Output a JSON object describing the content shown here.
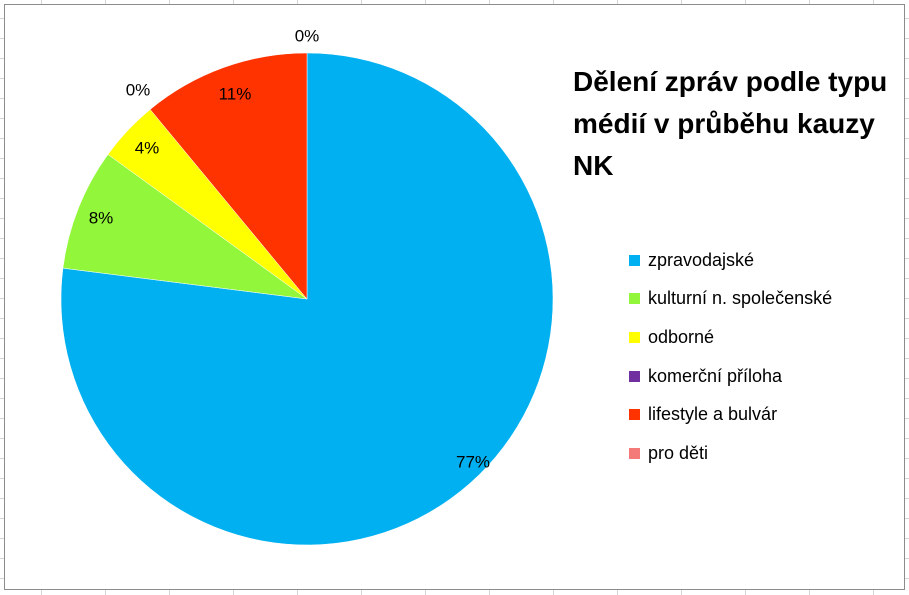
{
  "chart_data": {
    "type": "pie",
    "title": "Dělení zpráv podle typu médií v průběhu kauzy NK",
    "legend_position": "right",
    "categories": [
      "zpravodajské",
      "kulturní n. společenské",
      "odborné",
      "komerční příloha",
      "lifestyle a bulvár",
      "pro děti"
    ],
    "values": [
      77,
      8,
      4,
      0,
      11,
      0
    ],
    "labels": [
      "77%",
      "8%",
      "4%",
      "0%",
      "11%",
      "0%"
    ],
    "colors": [
      "#00B0F0",
      "#92F73B",
      "#FFFF00",
      "#7030A0",
      "#FF3300",
      "#F47A7A"
    ]
  }
}
